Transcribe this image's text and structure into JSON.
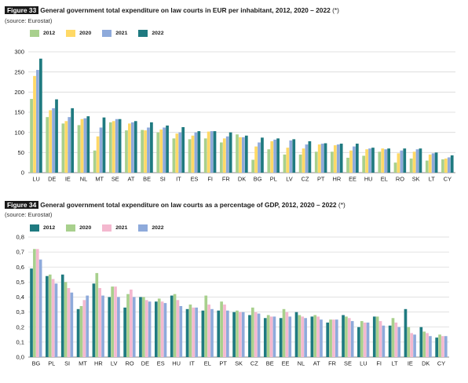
{
  "chart_data": [
    {
      "type": "bar",
      "figure_label": "Figure 33",
      "title": "General government total expenditure on law courts in EUR per inhabitant, 2012, 2020 – 2022",
      "title_note": "(*)",
      "source": "(source: Eurostat)",
      "ylim": [
        0,
        300
      ],
      "yticks": [
        "0",
        "50",
        "100",
        "150",
        "200",
        "250",
        "300"
      ],
      "grid": true,
      "legend_position": "top-left",
      "categories": [
        "LU",
        "DE",
        "IE",
        "NL",
        "MT",
        "SE",
        "AT",
        "BE",
        "SI",
        "IT",
        "ES",
        "FI",
        "FR",
        "DK",
        "BG",
        "PL",
        "LV",
        "CZ",
        "PT",
        "HR",
        "EE",
        "HU",
        "EL",
        "RO",
        "SK",
        "LT",
        "CY"
      ],
      "series": [
        {
          "name": "2012",
          "color": "#a8d08d",
          "values": [
            183,
            138,
            122,
            118,
            55,
            125,
            105,
            106,
            100,
            85,
            83,
            85,
            75,
            95,
            32,
            58,
            45,
            45,
            52,
            52,
            37,
            42,
            52,
            25,
            35,
            30,
            33
          ]
        },
        {
          "name": "2020",
          "color": "#ffd966",
          "values": [
            240,
            155,
            128,
            133,
            90,
            128,
            122,
            105,
            107,
            97,
            92,
            102,
            85,
            88,
            65,
            78,
            62,
            60,
            70,
            68,
            55,
            58,
            60,
            48,
            52,
            45,
            35
          ]
        },
        {
          "name": "2021",
          "color": "#8eaadb",
          "values": [
            255,
            160,
            138,
            135,
            112,
            133,
            125,
            112,
            112,
            100,
            100,
            103,
            90,
            88,
            75,
            82,
            80,
            70,
            72,
            70,
            65,
            60,
            58,
            55,
            58,
            48,
            38
          ]
        },
        {
          "name": "2022",
          "color": "#1f7a80",
          "values": [
            283,
            182,
            160,
            140,
            137,
            133,
            128,
            125,
            117,
            113,
            103,
            103,
            100,
            92,
            87,
            85,
            83,
            78,
            73,
            72,
            72,
            62,
            60,
            60,
            60,
            50,
            43
          ]
        }
      ]
    },
    {
      "type": "bar",
      "figure_label": "Figure 34",
      "title": "General government total expenditure on law courts as a percentage of GDP, 2012, 2020 – 2022",
      "title_note": "(*)",
      "source": "(source: Eurostat)",
      "ylim": [
        0,
        0.8
      ],
      "yticks": [
        "0,0",
        "0,1",
        "0,2",
        "0,3",
        "0,4",
        "0,5",
        "0,6",
        "0,7",
        "0,8"
      ],
      "grid": true,
      "legend_position": "top-left",
      "categories": [
        "BG",
        "PL",
        "SI",
        "MT",
        "HR",
        "LV",
        "RO",
        "DE",
        "ES",
        "HU",
        "IT",
        "EL",
        "PT",
        "SK",
        "CZ",
        "BE",
        "EE",
        "NL",
        "AT",
        "FR",
        "SE",
        "LU",
        "FI",
        "LT",
        "IE",
        "DK",
        "CY"
      ],
      "series": [
        {
          "name": "2012",
          "color": "#1f7a80",
          "values": [
            0.59,
            0.54,
            0.55,
            0.32,
            0.49,
            0.4,
            0.33,
            0.4,
            0.37,
            0.41,
            0.32,
            0.31,
            0.31,
            0.3,
            0.28,
            0.26,
            0.26,
            0.3,
            0.27,
            0.23,
            0.28,
            0.2,
            0.27,
            0.21,
            0.32,
            0.2,
            0.13
          ]
        },
        {
          "name": "2020",
          "color": "#a8d08d",
          "values": [
            0.72,
            0.55,
            0.5,
            0.34,
            0.56,
            0.47,
            0.42,
            0.4,
            0.39,
            0.42,
            0.35,
            0.41,
            0.37,
            0.31,
            0.33,
            0.28,
            0.32,
            0.28,
            0.28,
            0.25,
            0.27,
            0.24,
            0.27,
            0.26,
            0.2,
            0.17,
            0.15
          ]
        },
        {
          "name": "2021",
          "color": "#f4b8cf",
          "values": [
            0.72,
            0.52,
            0.46,
            0.38,
            0.46,
            0.47,
            0.45,
            0.38,
            0.37,
            0.38,
            0.33,
            0.35,
            0.35,
            0.3,
            0.3,
            0.27,
            0.3,
            0.27,
            0.27,
            0.25,
            0.26,
            0.23,
            0.24,
            0.23,
            0.16,
            0.16,
            0.14
          ]
        },
        {
          "name": "2022",
          "color": "#8eaadb",
          "values": [
            0.65,
            0.49,
            0.43,
            0.41,
            0.41,
            0.4,
            0.4,
            0.37,
            0.36,
            0.34,
            0.33,
            0.32,
            0.31,
            0.3,
            0.29,
            0.27,
            0.27,
            0.26,
            0.25,
            0.25,
            0.24,
            0.23,
            0.21,
            0.2,
            0.15,
            0.14,
            0.14
          ]
        }
      ]
    }
  ]
}
